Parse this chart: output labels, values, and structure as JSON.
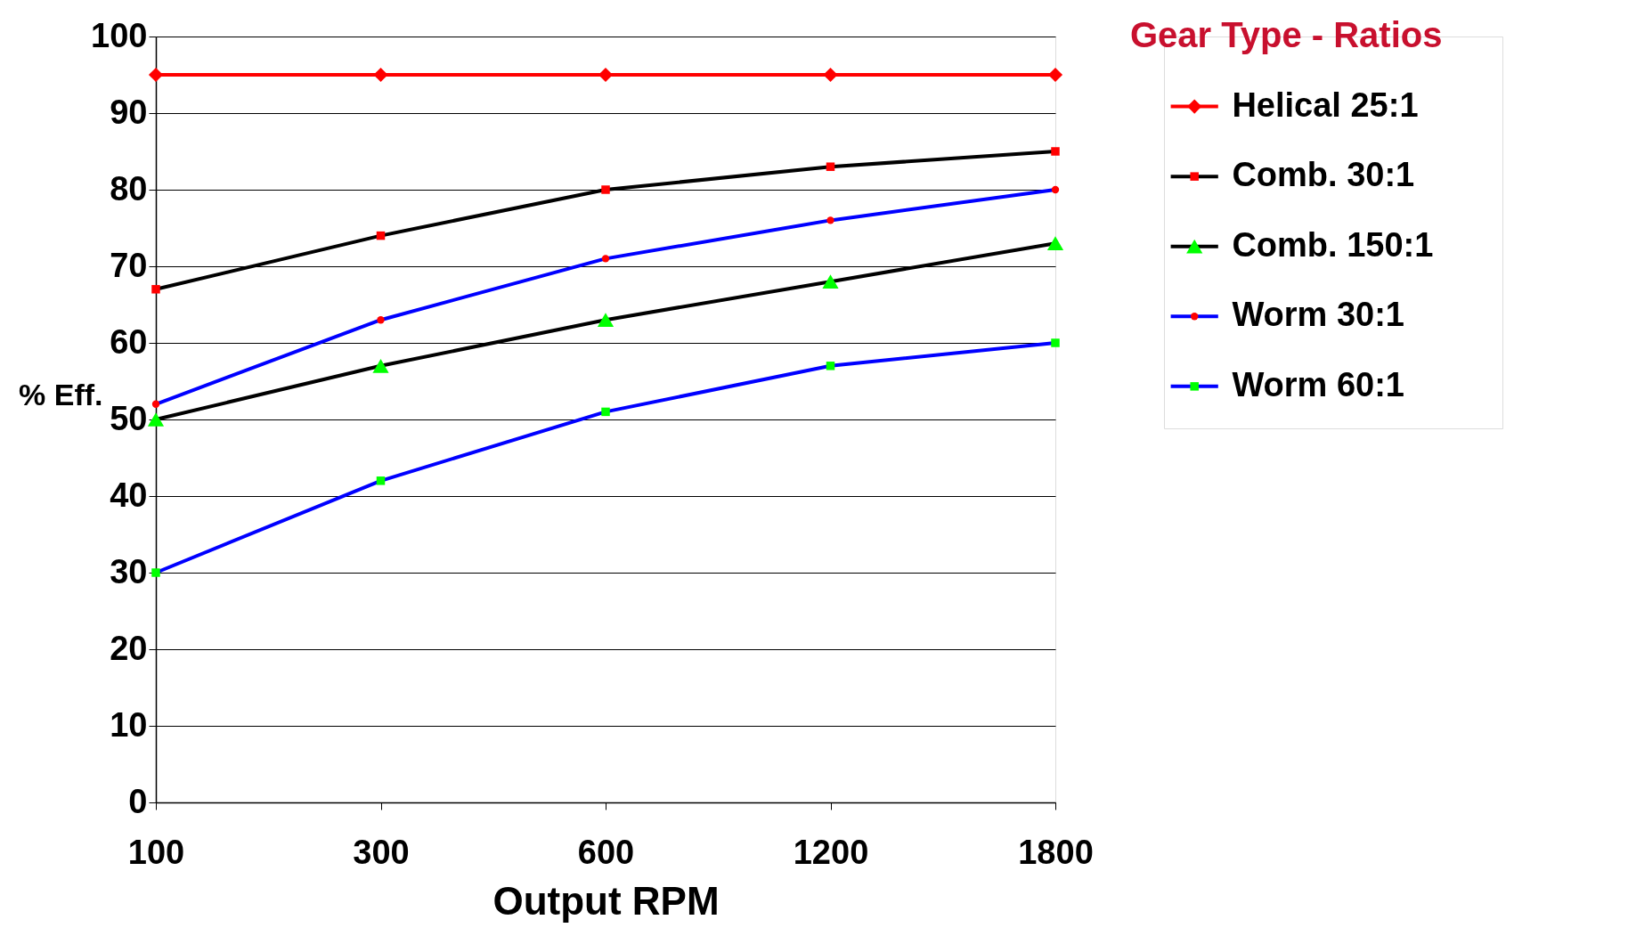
{
  "chart_data": {
    "type": "line",
    "xlabel": "Output RPM",
    "ylabel": "% Eff.",
    "legend_title": "Gear Type - Ratios",
    "legend": "top right",
    "grid": "y",
    "categories": [
      "100",
      "300",
      "600",
      "1200",
      "1800"
    ],
    "ylim": [
      0,
      100
    ],
    "yticks": [
      0,
      10,
      20,
      30,
      40,
      50,
      60,
      70,
      80,
      90,
      100
    ],
    "series": [
      {
        "name": "Helical 25:1",
        "color": "#ff0000",
        "marker": "diamond",
        "colors": [
          "#ff0000",
          "#ff0000",
          "#ff0000",
          "#ff0000",
          "#ff0000"
        ],
        "values": [
          95,
          95,
          95,
          95,
          95
        ]
      },
      {
        "name": "Comb. 30:1",
        "color": "#000000",
        "marker": "square",
        "colors": [
          "#ff0000",
          "#ff0000",
          "#ff0000",
          "#ff0000",
          "#ff0000"
        ],
        "values": [
          67,
          74,
          80,
          83,
          85
        ]
      },
      {
        "name": "Comb. 150:1",
        "color": "#000000",
        "marker": "triangle",
        "colors": [
          "#00ff00",
          "#00ff00",
          "#00ff00",
          "#00ff00",
          "#00ff00"
        ],
        "values": [
          50,
          57,
          63,
          68,
          73
        ]
      },
      {
        "name": "Worm 30:1",
        "color": "#0000ff",
        "marker": "circle",
        "colors": [
          "#ff0000",
          "#ff0000",
          "#ff0000",
          "#ff0000",
          "#ff0000"
        ],
        "values": [
          52,
          63,
          71,
          76,
          80
        ]
      },
      {
        "name": "Worm 60:1",
        "color": "#0000ff",
        "marker": "square",
        "colors": [
          "#00ff00",
          "#00ff00",
          "#00ff00",
          "#00ff00",
          "#00ff00"
        ],
        "values": [
          30,
          42,
          51,
          57,
          60
        ]
      }
    ]
  }
}
